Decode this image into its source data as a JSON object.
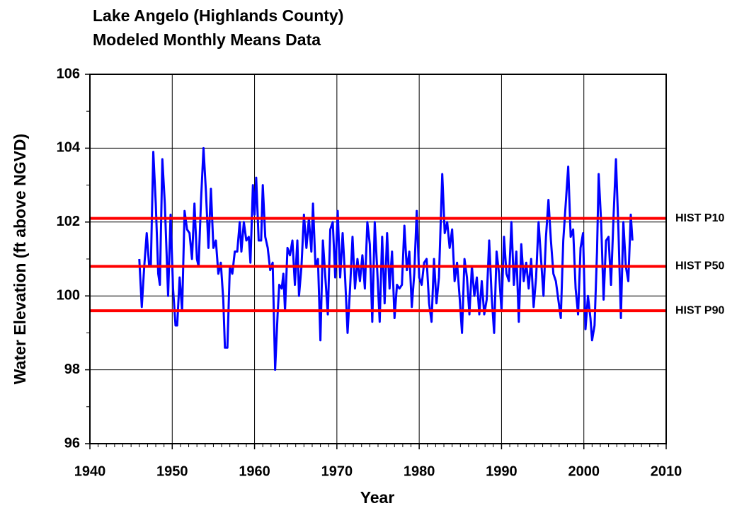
{
  "chart_data": {
    "type": "line",
    "title": "Lake Angelo (Highlands County)",
    "subtitle": "Modeled Monthly Means Data",
    "xlabel": "Year",
    "ylabel": "Water Elevation (ft above NGVD)",
    "xlim": [
      1940,
      2010
    ],
    "xticks": [
      1940,
      1950,
      1960,
      1970,
      1980,
      1990,
      2000,
      2010
    ],
    "xminorticks": [
      1941,
      1942,
      1943,
      1944,
      1945,
      1946,
      1947,
      1948,
      1949,
      1951,
      1952,
      1953,
      1954,
      1955,
      1956,
      1957,
      1958,
      1959,
      1961,
      1962,
      1963,
      1964,
      1965,
      1966,
      1967,
      1968,
      1969,
      1971,
      1972,
      1973,
      1974,
      1975,
      1976,
      1977,
      1978,
      1979,
      1981,
      1982,
      1983,
      1984,
      1985,
      1986,
      1987,
      1988,
      1989,
      1991,
      1992,
      1993,
      1994,
      1995,
      1996,
      1997,
      1998,
      1999,
      2001,
      2002,
      2003,
      2004,
      2005,
      2006,
      2007,
      2008,
      2009
    ],
    "ylim": [
      96,
      106
    ],
    "yticks": [
      96,
      98,
      100,
      102,
      104,
      106
    ],
    "yminorticks": [
      97,
      99,
      101,
      103,
      105
    ],
    "grid": true,
    "x": [
      1946.0,
      1946.3,
      1946.6,
      1946.9,
      1947.2,
      1947.4,
      1947.7,
      1948.0,
      1948.3,
      1948.5,
      1948.8,
      1949.1,
      1949.5,
      1949.8,
      1950.1,
      1950.4,
      1950.6,
      1950.9,
      1951.2,
      1951.5,
      1951.8,
      1952.1,
      1952.4,
      1952.7,
      1953.0,
      1953.2,
      1953.5,
      1953.8,
      1954.1,
      1954.4,
      1954.7,
      1955.0,
      1955.3,
      1955.6,
      1955.9,
      1956.2,
      1956.4,
      1956.7,
      1957.0,
      1957.3,
      1957.6,
      1957.9,
      1958.2,
      1958.4,
      1958.7,
      1959.0,
      1959.3,
      1959.5,
      1959.8,
      1960.0,
      1960.2,
      1960.5,
      1960.8,
      1961.0,
      1961.3,
      1961.6,
      1961.9,
      1962.2,
      1962.5,
      1962.8,
      1963.0,
      1963.3,
      1963.5,
      1963.7,
      1964.0,
      1964.3,
      1964.6,
      1964.9,
      1965.2,
      1965.4,
      1965.7,
      1966.0,
      1966.3,
      1966.6,
      1966.9,
      1967.1,
      1967.4,
      1967.7,
      1968.0,
      1968.3,
      1968.6,
      1968.9,
      1969.2,
      1969.5,
      1969.8,
      1970.1,
      1970.4,
      1970.7,
      1971.0,
      1971.3,
      1971.6,
      1971.9,
      1972.2,
      1972.5,
      1972.8,
      1973.1,
      1973.4,
      1973.7,
      1974.0,
      1974.3,
      1974.6,
      1974.9,
      1975.2,
      1975.5,
      1975.8,
      1976.1,
      1976.4,
      1976.7,
      1977.0,
      1977.3,
      1977.6,
      1977.9,
      1978.2,
      1978.5,
      1978.8,
      1979.1,
      1979.4,
      1979.7,
      1980.0,
      1980.3,
      1980.6,
      1980.9,
      1981.2,
      1981.5,
      1981.8,
      1982.1,
      1982.4,
      1982.8,
      1983.1,
      1983.4,
      1983.7,
      1984.0,
      1984.3,
      1984.6,
      1984.9,
      1985.2,
      1985.5,
      1985.8,
      1986.1,
      1986.4,
      1986.7,
      1987.0,
      1987.3,
      1987.6,
      1987.9,
      1988.2,
      1988.5,
      1988.8,
      1989.1,
      1989.4,
      1989.7,
      1990.0,
      1990.3,
      1990.6,
      1990.9,
      1991.2,
      1991.5,
      1991.8,
      1992.1,
      1992.4,
      1992.7,
      1993.0,
      1993.3,
      1993.6,
      1993.9,
      1994.2,
      1994.5,
      1994.8,
      1995.1,
      1995.4,
      1995.7,
      1996.0,
      1996.3,
      1996.6,
      1996.9,
      1997.2,
      1997.5,
      1997.8,
      1998.1,
      1998.4,
      1998.7,
      1999.0,
      1999.3,
      1999.6,
      1999.9,
      2000.2,
      2000.5,
      2000.8,
      2001.0,
      2001.3,
      2001.6,
      2001.8,
      2002.1,
      2002.4,
      2002.7,
      2003.0,
      2003.3,
      2003.6,
      2003.9,
      2004.2,
      2004.5,
      2004.8,
      2005.1,
      2005.4,
      2005.7,
      2005.9
    ],
    "series": [
      {
        "color": "#0000ff",
        "values": [
          101.0,
          99.7,
          100.8,
          101.7,
          100.8,
          100.8,
          103.9,
          102.5,
          100.6,
          100.3,
          103.7,
          102.5,
          100.0,
          102.2,
          100.2,
          99.2,
          99.2,
          100.5,
          99.6,
          102.3,
          101.8,
          101.7,
          101.0,
          102.5,
          101.0,
          100.8,
          102.6,
          104.0,
          102.8,
          101.3,
          102.9,
          101.3,
          101.5,
          100.6,
          100.9,
          99.9,
          98.6,
          98.6,
          100.8,
          100.6,
          101.2,
          101.2,
          102.0,
          101.2,
          102.0,
          101.5,
          101.6,
          100.9,
          103.0,
          102.2,
          103.2,
          101.5,
          101.5,
          103.0,
          101.6,
          101.3,
          100.7,
          100.9,
          98.0,
          99.5,
          100.3,
          100.2,
          100.6,
          99.6,
          101.3,
          101.1,
          101.5,
          100.3,
          101.5,
          100.0,
          100.8,
          102.2,
          101.3,
          102.1,
          101.2,
          102.5,
          100.8,
          101.0,
          98.8,
          101.5,
          100.5,
          99.5,
          101.8,
          102.0,
          100.5,
          102.3,
          100.5,
          101.7,
          100.5,
          99.0,
          100.2,
          101.6,
          100.2,
          101.0,
          100.4,
          101.1,
          100.2,
          102.0,
          101.4,
          99.3,
          102.0,
          100.7,
          99.3,
          101.6,
          99.8,
          101.7,
          100.2,
          101.2,
          99.4,
          100.3,
          100.2,
          100.3,
          101.9,
          100.7,
          101.2,
          99.7,
          100.6,
          102.3,
          100.5,
          100.3,
          100.9,
          101.0,
          99.8,
          99.3,
          101.0,
          99.8,
          100.5,
          103.3,
          101.7,
          102.0,
          101.3,
          101.8,
          100.4,
          100.9,
          100.0,
          99.0,
          101.0,
          100.5,
          99.5,
          100.8,
          100.0,
          100.5,
          99.5,
          100.4,
          99.5,
          99.9,
          101.5,
          100.0,
          99.0,
          101.2,
          100.6,
          99.6,
          101.6,
          100.6,
          100.4,
          102.0,
          100.3,
          101.2,
          99.3,
          101.4,
          100.4,
          100.9,
          100.2,
          101.0,
          99.7,
          100.5,
          102.0,
          101.0,
          100.0,
          101.6,
          102.6,
          101.5,
          100.6,
          100.4,
          99.9,
          99.4,
          101.5,
          102.5,
          103.5,
          101.6,
          101.8,
          100.2,
          99.5,
          101.3,
          101.7,
          99.1,
          100.0,
          99.4,
          98.8,
          99.2,
          101.2,
          103.3,
          102.0,
          99.9,
          101.5,
          101.6,
          100.3,
          102.1,
          103.7,
          101.8,
          99.4,
          102.0,
          100.8,
          100.4,
          102.2,
          101.5
        ]
      }
    ],
    "reference_lines": [
      {
        "label": "HIST P10",
        "value": 102.1,
        "color": "#ff0000"
      },
      {
        "label": "HIST P50",
        "value": 100.8,
        "color": "#ff0000"
      },
      {
        "label": "HIST P90",
        "value": 99.6,
        "color": "#ff0000"
      }
    ]
  }
}
